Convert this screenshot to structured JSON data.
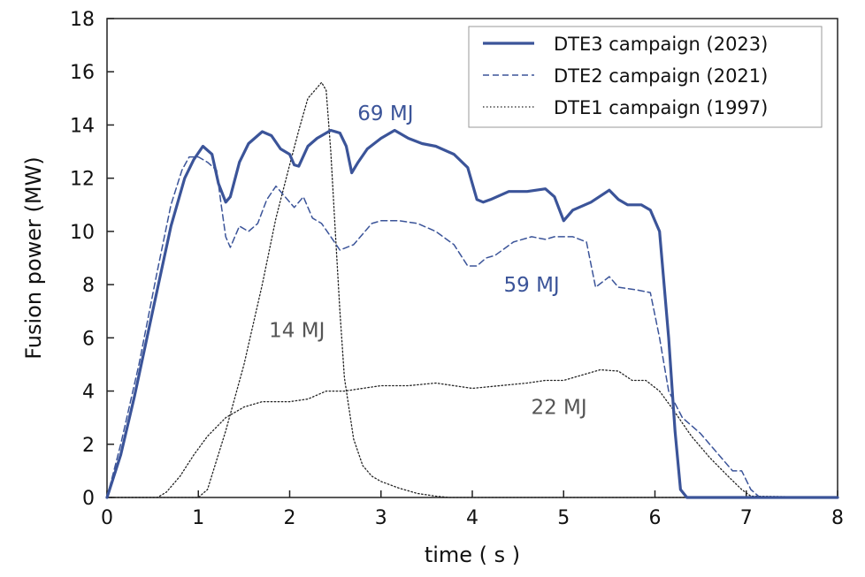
{
  "chart_data": {
    "type": "line",
    "title": "",
    "xlabel": "time  ( s )",
    "ylabel": "Fusion power (MW)",
    "xlim": [
      0,
      8
    ],
    "ylim": [
      0,
      18
    ],
    "x_ticks": [
      0,
      1,
      2,
      3,
      4,
      5,
      6,
      7,
      8
    ],
    "y_ticks": [
      0,
      2,
      4,
      6,
      8,
      10,
      12,
      14,
      16,
      18
    ],
    "grid": false,
    "legend_position": "top-right",
    "colors": {
      "dte3": "#3b5499",
      "dte2": "#3b5499",
      "dte1": "#222222",
      "annot_blue": "#3b5499",
      "annot_gray": "#555555"
    },
    "series": [
      {
        "name": "DTE3 campaign (2023)",
        "style": "solid",
        "x": [
          0,
          0.15,
          0.3,
          0.5,
          0.7,
          0.85,
          0.95,
          1.05,
          1.15,
          1.22,
          1.3,
          1.35,
          1.45,
          1.55,
          1.7,
          1.8,
          1.9,
          2.0,
          2.05,
          2.1,
          2.2,
          2.3,
          2.45,
          2.55,
          2.62,
          2.68,
          2.75,
          2.85,
          3.0,
          3.15,
          3.3,
          3.45,
          3.6,
          3.8,
          3.95,
          4.05,
          4.12,
          4.2,
          4.4,
          4.6,
          4.8,
          4.9,
          5.0,
          5.1,
          5.3,
          5.5,
          5.6,
          5.7,
          5.85,
          5.95,
          6.05,
          6.15,
          6.22,
          6.28,
          6.35,
          7.0,
          8.0
        ],
        "y": [
          0,
          1.6,
          3.8,
          7,
          10.2,
          12,
          12.7,
          13.2,
          12.9,
          11.8,
          11.1,
          11.3,
          12.6,
          13.3,
          13.75,
          13.6,
          13.1,
          12.9,
          12.5,
          12.45,
          13.2,
          13.5,
          13.8,
          13.7,
          13.2,
          12.2,
          12.6,
          13.1,
          13.5,
          13.8,
          13.5,
          13.3,
          13.2,
          12.9,
          12.4,
          11.2,
          11.1,
          11.2,
          11.5,
          11.5,
          11.6,
          11.3,
          10.4,
          10.8,
          11.1,
          11.55,
          11.2,
          11.0,
          11.0,
          10.8,
          10.0,
          6.0,
          2.5,
          0.3,
          0,
          0,
          0
        ]
      },
      {
        "name": "DTE2 campaign (2021)",
        "style": "dashed",
        "x": [
          0,
          0.15,
          0.35,
          0.55,
          0.7,
          0.82,
          0.9,
          1.0,
          1.1,
          1.2,
          1.25,
          1.3,
          1.35,
          1.45,
          1.55,
          1.65,
          1.75,
          1.85,
          1.95,
          2.05,
          2.15,
          2.25,
          2.35,
          2.45,
          2.55,
          2.7,
          2.9,
          3.0,
          3.2,
          3.4,
          3.6,
          3.8,
          3.95,
          4.05,
          4.15,
          4.25,
          4.45,
          4.65,
          4.8,
          4.9,
          5.1,
          5.25,
          5.35,
          5.5,
          5.6,
          5.8,
          5.95,
          6.05,
          6.15,
          6.3,
          6.5,
          6.75,
          6.85,
          6.95,
          7.05,
          7.15,
          8.0
        ],
        "y": [
          0,
          2,
          5,
          8.5,
          11,
          12.3,
          12.8,
          12.8,
          12.6,
          12.3,
          11.0,
          9.8,
          9.4,
          10.2,
          10.0,
          10.3,
          11.2,
          11.7,
          11.3,
          10.9,
          11.3,
          10.5,
          10.3,
          9.8,
          9.3,
          9.5,
          10.3,
          10.4,
          10.4,
          10.3,
          10.0,
          9.5,
          8.7,
          8.7,
          9.0,
          9.1,
          9.6,
          9.8,
          9.7,
          9.8,
          9.8,
          9.6,
          7.9,
          8.3,
          7.9,
          7.8,
          7.7,
          6.0,
          4.0,
          3.0,
          2.4,
          1.4,
          1.0,
          1.0,
          0.3,
          0,
          0
        ]
      },
      {
        "name": "DTE1 campaign (1997) – 14 MJ pulse",
        "style": "dotted",
        "x": [
          0,
          1.0,
          1.1,
          1.3,
          1.5,
          1.7,
          1.85,
          2.0,
          2.1,
          2.2,
          2.3,
          2.35,
          2.4,
          2.45,
          2.5,
          2.55,
          2.6,
          2.7,
          2.8,
          2.9,
          3.0,
          3.2,
          3.4,
          3.6,
          3.75,
          8.0
        ],
        "y": [
          0,
          0,
          0.3,
          2.5,
          5.0,
          8.0,
          10.5,
          12.5,
          13.8,
          15.0,
          15.4,
          15.6,
          15.3,
          13.0,
          10.0,
          7.0,
          4.5,
          2.2,
          1.2,
          0.8,
          0.6,
          0.35,
          0.15,
          0.05,
          0,
          0
        ]
      },
      {
        "name": "DTE1 campaign (1997) – 22 MJ pulse",
        "style": "dotted",
        "x": [
          0,
          0.55,
          0.65,
          0.8,
          0.95,
          1.1,
          1.3,
          1.5,
          1.7,
          1.8,
          2.0,
          2.2,
          2.4,
          2.6,
          2.8,
          3.0,
          3.3,
          3.6,
          3.8,
          4.0,
          4.3,
          4.6,
          4.8,
          5.0,
          5.2,
          5.4,
          5.6,
          5.75,
          5.9,
          6.05,
          6.2,
          6.4,
          6.6,
          6.8,
          6.95,
          7.05,
          8.0
        ],
        "y": [
          0,
          0,
          0.2,
          0.8,
          1.6,
          2.3,
          3.0,
          3.4,
          3.6,
          3.6,
          3.6,
          3.7,
          4.0,
          4.0,
          4.1,
          4.2,
          4.2,
          4.3,
          4.2,
          4.1,
          4.2,
          4.3,
          4.4,
          4.4,
          4.6,
          4.8,
          4.75,
          4.4,
          4.4,
          4.0,
          3.3,
          2.3,
          1.5,
          0.8,
          0.3,
          0.05,
          0
        ]
      }
    ],
    "annotations": [
      {
        "text": "69 MJ",
        "x": 3.05,
        "y": 14.45,
        "color": "#3b5499"
      },
      {
        "text": "59 MJ",
        "x": 4.65,
        "y": 8.0,
        "color": "#3b5499"
      },
      {
        "text": "14 MJ",
        "x": 2.08,
        "y": 6.3,
        "color": "#555555"
      },
      {
        "text": "22 MJ",
        "x": 4.95,
        "y": 3.4,
        "color": "#555555"
      }
    ]
  }
}
